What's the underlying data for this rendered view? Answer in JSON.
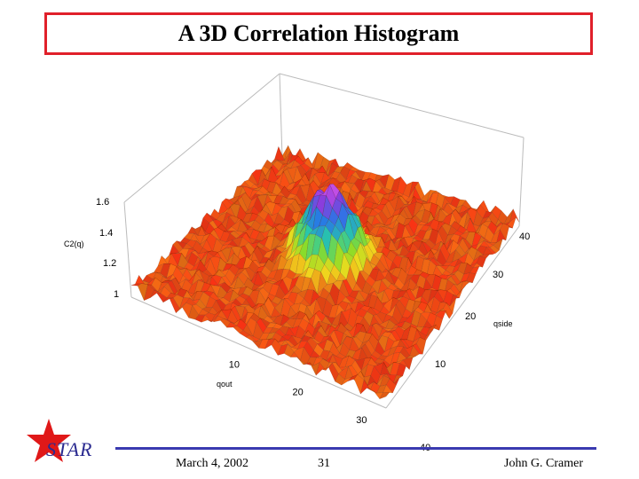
{
  "slide": {
    "title": "A 3D Correlation Histogram",
    "date": "March 4, 2002",
    "page_number": "31",
    "author": "John G. Cramer",
    "logo_text": "STAR"
  },
  "colors": {
    "title_border": "#e0202a",
    "footer_line": "#3a3ab0",
    "logo_star": "#e01818",
    "logo_text": "#2a2a90"
  },
  "chart_data": {
    "type": "surface",
    "title": "A 3D Correlation Histogram",
    "zlabel": "C2(q)",
    "xlabel": "qout",
    "ylabel": "qside",
    "z_ticks": [
      "1",
      "1.2",
      "1.4",
      "1.6"
    ],
    "x_ticks": [
      "10",
      "20",
      "30",
      "40"
    ],
    "y_ticks": [
      "10",
      "20",
      "30",
      "40"
    ],
    "x_range": [
      0,
      40
    ],
    "y_range": [
      0,
      40
    ],
    "z_range": [
      1,
      1.6
    ],
    "baseline_value": 1.0,
    "noise_amplitude": 0.06,
    "peak": {
      "center_qout": 20,
      "center_qside": 20,
      "height": 1.65,
      "width": 3.5
    }
  }
}
